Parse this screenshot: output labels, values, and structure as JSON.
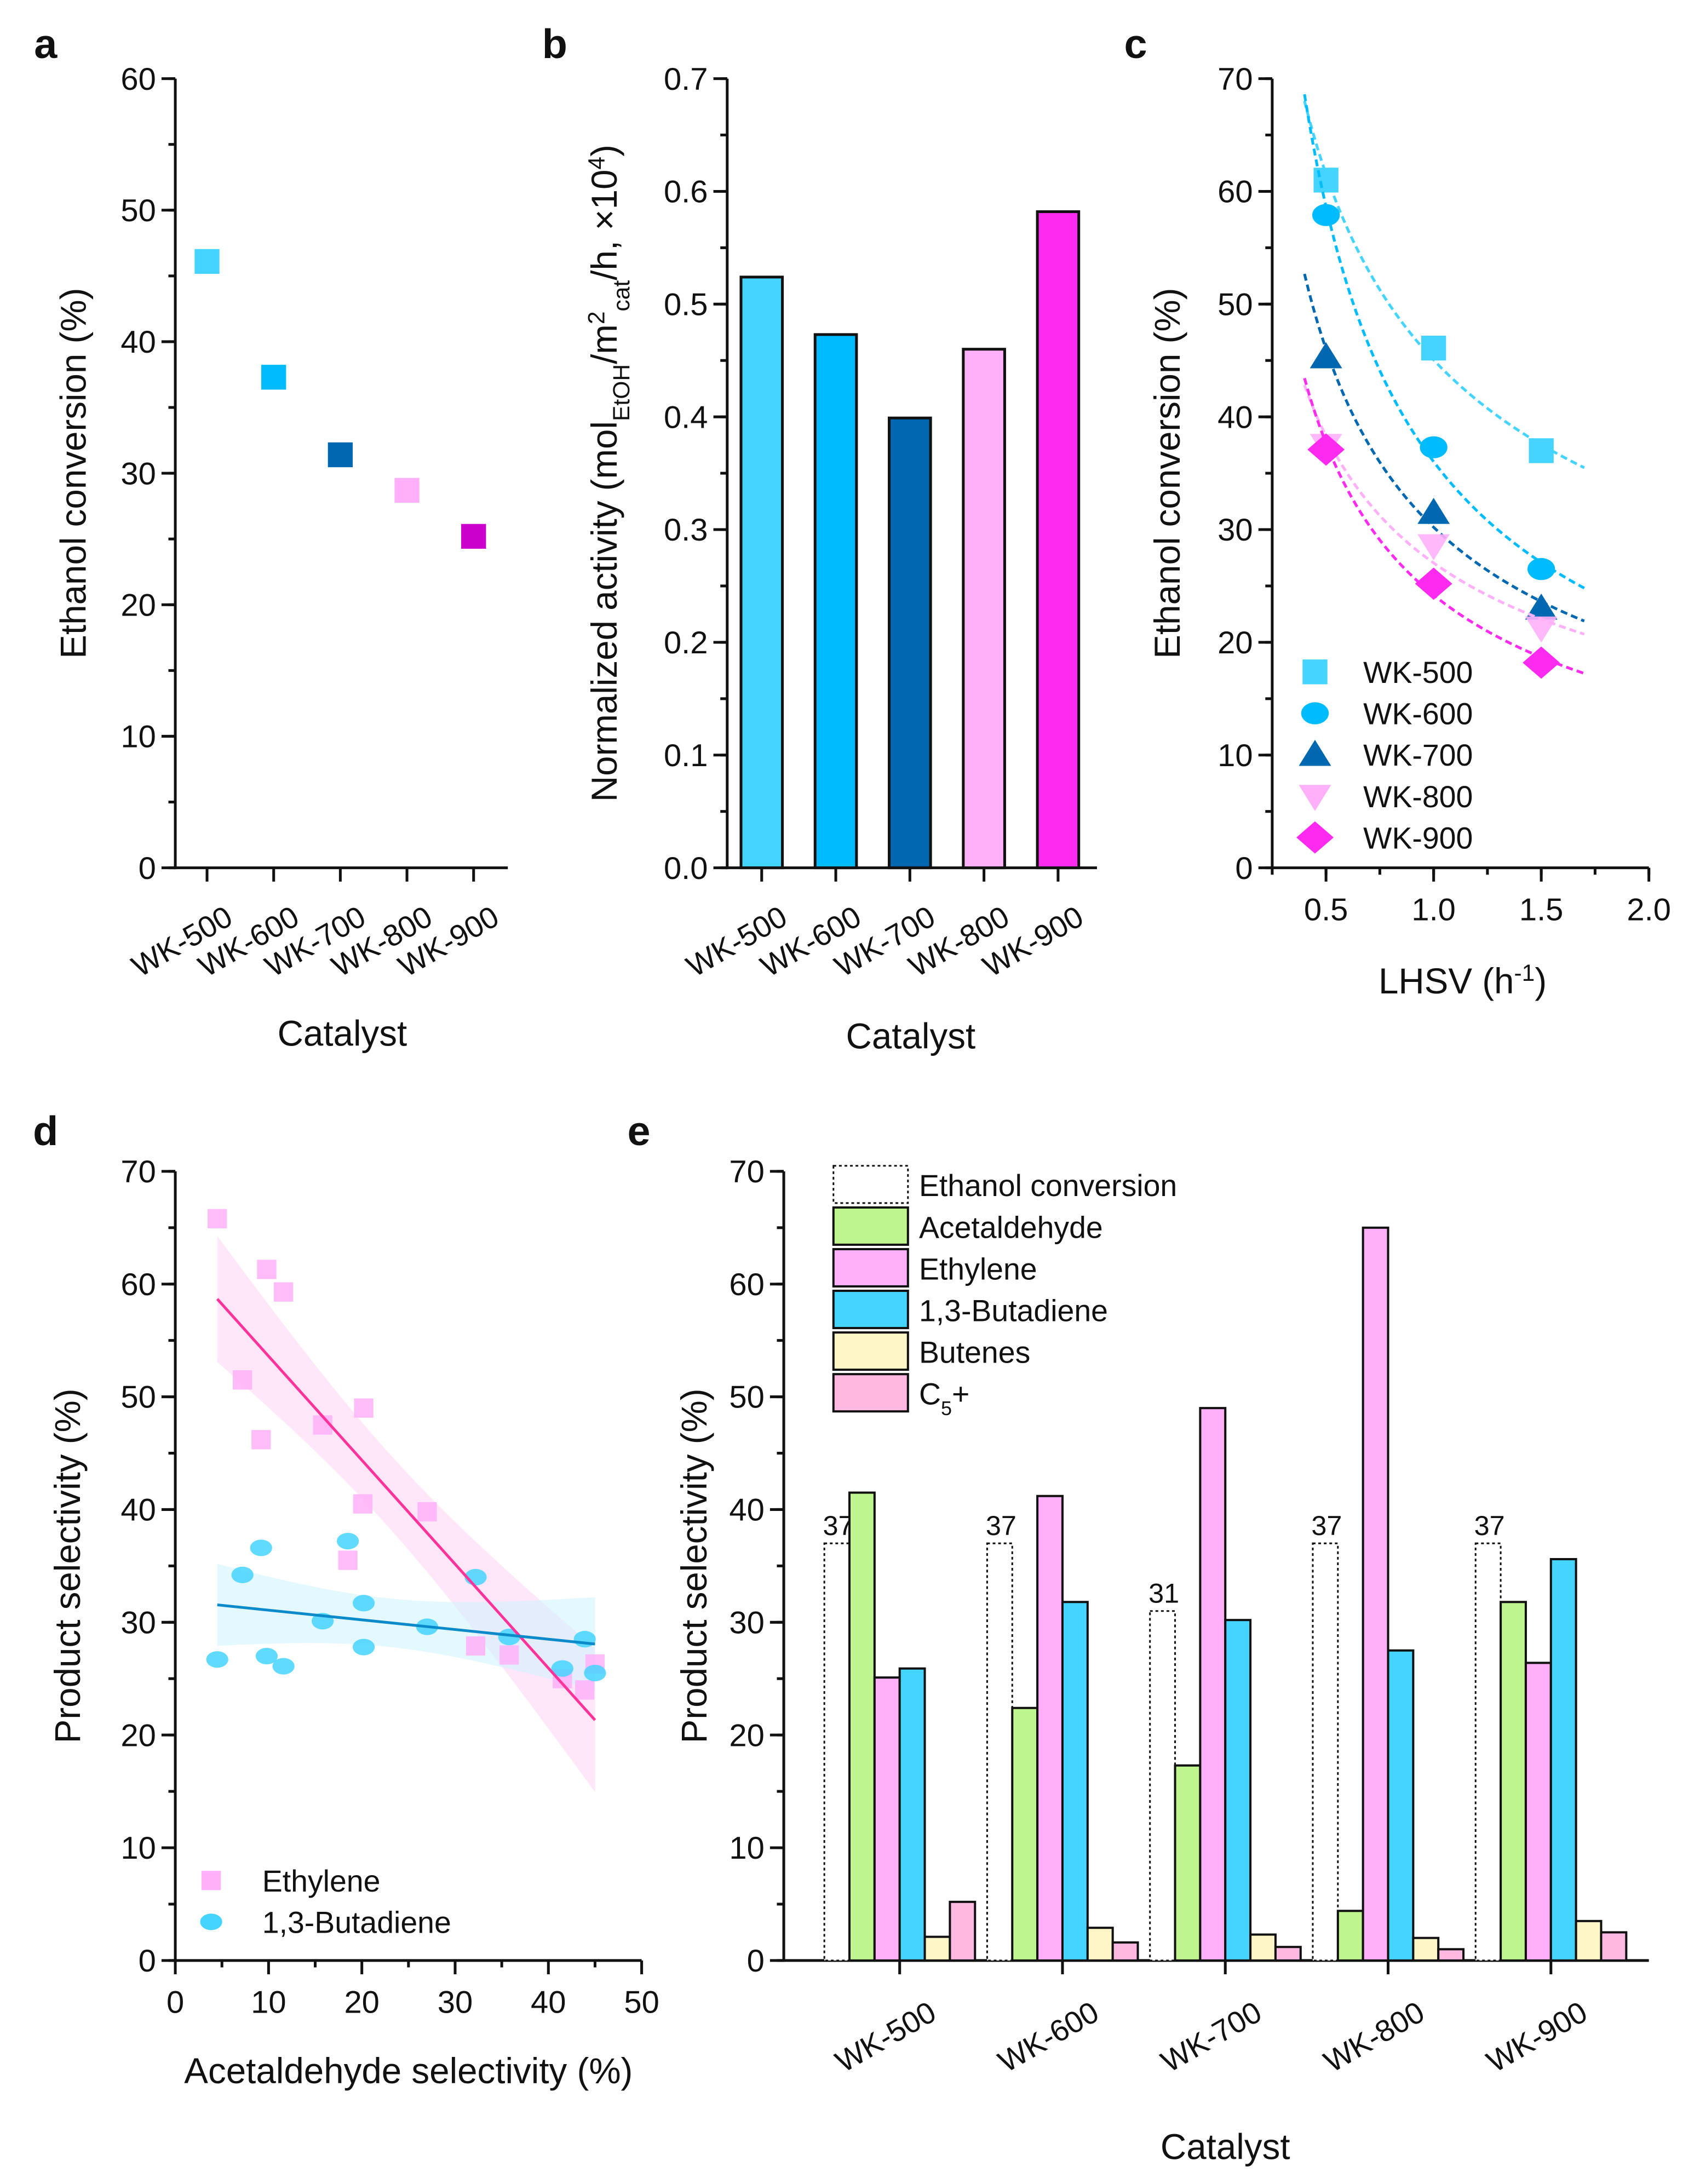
{
  "colors": {
    "WK-500": "#45d4ff",
    "WK-600": "#00bcff",
    "WK-700": "#0068b0",
    "WK-800": "#ffb0f8",
    "WK-900": "#ff2af0",
    "WK-900-a": "#cc00cc",
    "ethylene": "#ffb0f8",
    "butadiene": "#45d4ff",
    "ethylene_fit": "#ff3399",
    "butadiene_fit": "#0a8ac8",
    "acetaldehyde": "#bff58f",
    "butenes": "#fff6c8",
    "c5": "#ffb8e0"
  },
  "chart_data": [
    {
      "panel": "a",
      "type": "scatter",
      "categories": [
        "WK-500",
        "WK-600",
        "WK-700",
        "WK-800",
        "WK-900"
      ],
      "values": [
        46.1,
        37.3,
        31.4,
        28.7,
        25.2
      ],
      "xlabel": "Catalyst",
      "ylabel": "Ethanol conversion (%)",
      "ylim": [
        0,
        60
      ],
      "yticks": [
        0,
        10,
        20,
        30,
        40,
        50,
        60
      ],
      "marker": "square"
    },
    {
      "panel": "b",
      "type": "bar",
      "categories": [
        "WK-500",
        "WK-600",
        "WK-700",
        "WK-800",
        "WK-900"
      ],
      "values": [
        0.524,
        0.473,
        0.399,
        0.46,
        0.582
      ],
      "xlabel": "Catalyst",
      "ylabel_segments": [
        [
          "Normalized activity (mol",
          ""
        ],
        [
          "EtOH",
          "sub"
        ],
        [
          "/m",
          ""
        ],
        [
          "2",
          "sup"
        ],
        [
          "cat",
          "sub"
        ],
        [
          "/h, ×10",
          ""
        ],
        [
          "4",
          "sup"
        ],
        [
          ")",
          ""
        ]
      ],
      "ylim": [
        0,
        0.7
      ],
      "yticks": [
        "0.0",
        "0.1",
        "0.2",
        "0.3",
        "0.4",
        "0.5",
        "0.6",
        "0.7"
      ]
    },
    {
      "panel": "c",
      "type": "scatter",
      "xlabel_segments": [
        [
          "LHSV (h",
          ""
        ],
        [
          "-1",
          "sup"
        ],
        [
          ")",
          ""
        ]
      ],
      "ylabel": "Ethanol conversion (%)",
      "xlim": [
        0.25,
        2.0
      ],
      "ylim": [
        0,
        70
      ],
      "xticks": [
        "0.5",
        "1.0",
        "1.5",
        "2.0"
      ],
      "yticks": [
        0,
        10,
        20,
        30,
        40,
        50,
        60,
        70
      ],
      "x": [
        0.5,
        1.0,
        1.5
      ],
      "legend": "bottom-left",
      "fit": "dashed power-law curves",
      "series": [
        {
          "name": "WK-500",
          "marker": "square",
          "values": [
            61.0,
            46.1,
            37.0
          ]
        },
        {
          "name": "WK-600",
          "marker": "circle",
          "values": [
            57.9,
            37.3,
            26.5
          ]
        },
        {
          "name": "WK-700",
          "marker": "triangle-up",
          "values": [
            45.3,
            31.5,
            23.0
          ]
        },
        {
          "name": "WK-800",
          "marker": "triangle-down",
          "values": [
            37.5,
            28.6,
            21.3
          ]
        },
        {
          "name": "WK-900",
          "marker": "diamond",
          "values": [
            37.1,
            25.2,
            18.2
          ]
        }
      ]
    },
    {
      "panel": "d",
      "type": "scatter",
      "xlabel": "Acetaldehyde selectivity (%)",
      "ylabel": "Product selectivity (%)",
      "xlim": [
        0,
        50
      ],
      "ylim": [
        0,
        70
      ],
      "xticks": [
        0,
        10,
        20,
        30,
        40,
        50
      ],
      "yticks": [
        0,
        10,
        20,
        30,
        40,
        50,
        60,
        70
      ],
      "legend": "bottom-left",
      "fit": "linear with confidence band",
      "series": [
        {
          "name": "Ethylene",
          "marker": "square",
          "points": [
            [
              4.5,
              65.8
            ],
            [
              7.2,
              51.5
            ],
            [
              9.2,
              46.2
            ],
            [
              9.8,
              61.3
            ],
            [
              11.6,
              59.3
            ],
            [
              15.8,
              47.5
            ],
            [
              20.2,
              49.0
            ],
            [
              20.1,
              40.5
            ],
            [
              18.5,
              35.5
            ],
            [
              27.0,
              39.8
            ],
            [
              32.2,
              27.9
            ],
            [
              35.8,
              27.1
            ],
            [
              41.5,
              25.0
            ],
            [
              43.9,
              24.0
            ],
            [
              45.0,
              26.3
            ]
          ]
        },
        {
          "name": "1,3-Butadiene",
          "marker": "circle",
          "points": [
            [
              4.5,
              26.7
            ],
            [
              7.2,
              34.2
            ],
            [
              9.2,
              36.6
            ],
            [
              9.8,
              27.0
            ],
            [
              11.6,
              26.1
            ],
            [
              15.8,
              30.1
            ],
            [
              18.5,
              37.2
            ],
            [
              20.2,
              31.7
            ],
            [
              20.2,
              27.8
            ],
            [
              27.0,
              29.6
            ],
            [
              32.2,
              34.0
            ],
            [
              35.8,
              28.7
            ],
            [
              41.5,
              25.9
            ],
            [
              43.9,
              28.5
            ],
            [
              45.0,
              25.5
            ]
          ]
        }
      ]
    },
    {
      "panel": "e",
      "type": "bar",
      "categories": [
        "WK-500",
        "WK-600",
        "WK-700",
        "WK-800",
        "WK-900"
      ],
      "xlabel": "Catalyst",
      "ylabel": "Product selectivity (%)",
      "ylim": [
        0,
        70
      ],
      "yticks": [
        0,
        10,
        20,
        30,
        40,
        50,
        60,
        70
      ],
      "legend": "top-left",
      "series": [
        {
          "name": "Ethanol conversion",
          "values": [
            37,
            37,
            31,
            37,
            37
          ],
          "labels": [
            "37",
            "37",
            "31",
            "37",
            "37"
          ],
          "style": "dotted-outline"
        },
        {
          "name": "Acetaldehyde",
          "values": [
            41.5,
            22.4,
            17.3,
            4.4,
            31.8
          ]
        },
        {
          "name": "Ethylene",
          "values": [
            25.1,
            41.2,
            49.0,
            65.0,
            26.4
          ]
        },
        {
          "name": "1,3-Butadiene",
          "values": [
            25.9,
            31.8,
            30.2,
            27.5,
            35.6
          ]
        },
        {
          "name": "Butenes",
          "values": [
            2.1,
            2.9,
            2.3,
            2.0,
            3.5
          ]
        },
        {
          "name": "C5+",
          "name_segments": [
            [
              "C",
              ""
            ],
            [
              "5",
              "sub"
            ],
            [
              "+",
              ""
            ]
          ],
          "values": [
            5.2,
            1.6,
            1.2,
            1.0,
            2.5
          ]
        }
      ]
    }
  ],
  "panel_labels": [
    "a",
    "b",
    "c",
    "d",
    "e"
  ]
}
